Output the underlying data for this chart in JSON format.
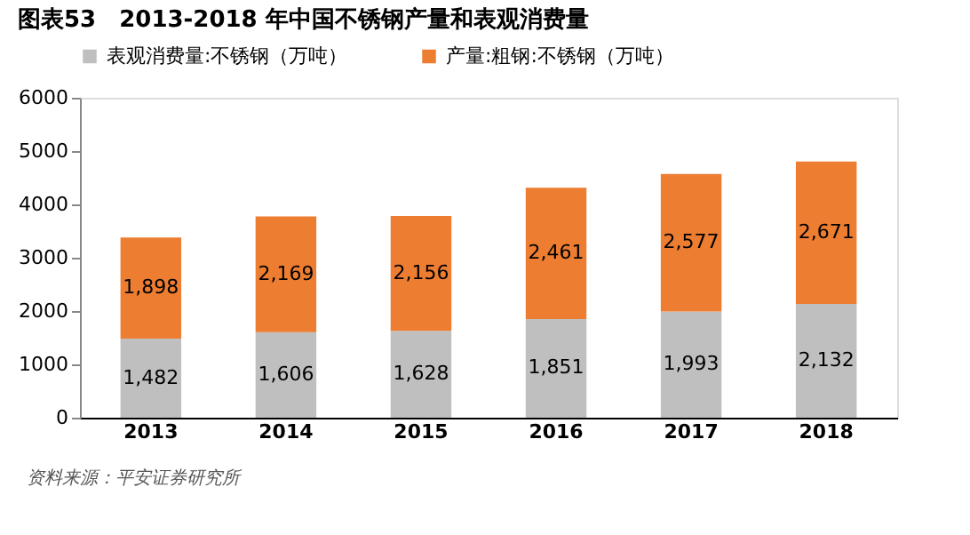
{
  "chart_data": {
    "type": "bar",
    "title": "图表53　2013-2018 年中国不锈钢产量和表观消费量",
    "categories": [
      "2013",
      "2014",
      "2015",
      "2016",
      "2017",
      "2018"
    ],
    "stacked": true,
    "series": [
      {
        "name": "表观消费量:不锈钢（万吨）",
        "color": "#bfbfbf",
        "values": [
          1482,
          1606,
          1628,
          1851,
          1993,
          2132
        ],
        "value_labels": [
          "1,482",
          "1,606",
          "1,628",
          "1,851",
          "1,993",
          "2,132"
        ]
      },
      {
        "name": "产量:粗钢:不锈钢（万吨）",
        "color": "#ed7d31",
        "values": [
          1898,
          2169,
          2156,
          2461,
          2577,
          2671
        ],
        "value_labels": [
          "1,898",
          "2,169",
          "2,156",
          "2,461",
          "2,577",
          "2,671"
        ]
      }
    ],
    "ylim": [
      0,
      6000
    ],
    "yticks": [
      0,
      1000,
      2000,
      3000,
      4000,
      5000,
      6000
    ],
    "grid": false,
    "legend": "top",
    "annotations": [
      "资料来源：平安证券研究所"
    ]
  }
}
